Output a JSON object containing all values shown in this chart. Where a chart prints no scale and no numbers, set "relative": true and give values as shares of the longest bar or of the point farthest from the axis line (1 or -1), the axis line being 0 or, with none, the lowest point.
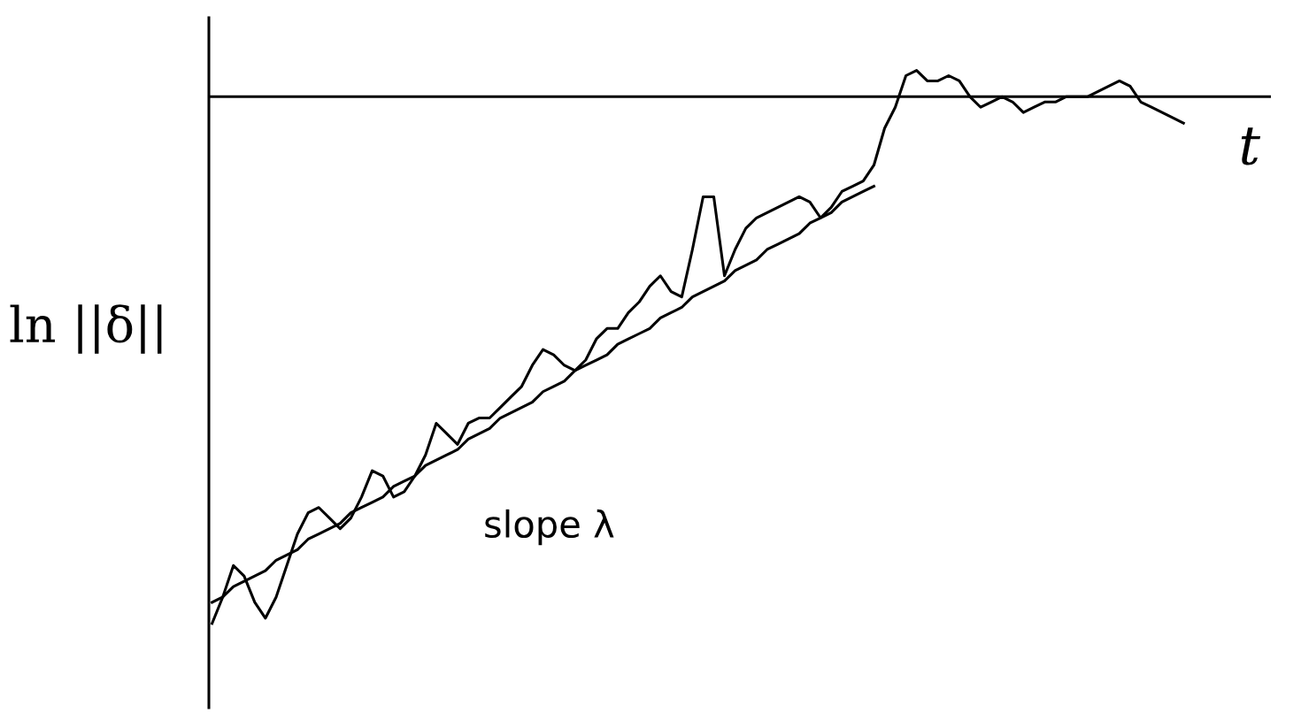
{
  "chart_data": {
    "type": "line",
    "relative": true,
    "xlabel": "t",
    "ylabel": "ln ||δ||",
    "annotations": [
      "slope λ"
    ],
    "categories": [
      null,
      null,
      null,
      null,
      null,
      null,
      null,
      null,
      null,
      null,
      null,
      null,
      null,
      null,
      null,
      null,
      null,
      null,
      null,
      null,
      null,
      null,
      null,
      null,
      null,
      null,
      null,
      null,
      null,
      null,
      null,
      null,
      null,
      null,
      null,
      null,
      null,
      null,
      null,
      null,
      null,
      null,
      null,
      null,
      null,
      null,
      null,
      null,
      null,
      null,
      null,
      null,
      null,
      null,
      null,
      null,
      null,
      null,
      null,
      null,
      null,
      null,
      null,
      null,
      null,
      null,
      null,
      null,
      null,
      null,
      null,
      null,
      null,
      null,
      null,
      null,
      null,
      null,
      null,
      null,
      null,
      null,
      null,
      null,
      null,
      null,
      null,
      null,
      null,
      null,
      null,
      null
    ],
    "series": [
      {
        "color": "#000000",
        "values": [
          -1.0,
          -0.95,
          -0.89,
          -0.91,
          -0.96,
          -0.99,
          -0.95,
          -0.89,
          -0.83,
          -0.79,
          -0.78,
          -0.8,
          -0.82,
          -0.8,
          -0.76,
          -0.71,
          -0.72,
          -0.76,
          -0.75,
          -0.72,
          -0.68,
          -0.62,
          -0.64,
          -0.66,
          -0.62,
          -0.61,
          -0.61,
          -0.59,
          -0.57,
          -0.55,
          -0.51,
          -0.48,
          -0.49,
          -0.51,
          -0.52,
          -0.5,
          -0.46,
          -0.44,
          -0.44,
          -0.41,
          -0.39,
          -0.36,
          -0.34,
          -0.37,
          -0.38,
          -0.29,
          -0.19,
          -0.19,
          -0.34,
          -0.29,
          -0.25,
          -0.23,
          -0.22,
          -0.21,
          -0.2,
          -0.19,
          -0.2,
          -0.23,
          -0.21,
          -0.18,
          -0.17,
          -0.16,
          -0.13,
          -0.06,
          -0.02,
          0.04,
          0.05,
          0.03,
          0.03,
          0.04,
          0.03,
          0.0,
          -0.02,
          -0.01,
          0.0,
          -0.01,
          -0.03,
          -0.02,
          -0.01,
          -0.01,
          0,
          0,
          0,
          0.01,
          0.02,
          0.03,
          0.02,
          -0.01,
          -0.02,
          -0.03,
          -0.04,
          -0.05
        ]
      },
      {
        "color": "#000000",
        "values": [
          -0.96,
          -0.95,
          -0.93,
          -0.92,
          -0.91,
          -0.9,
          -0.88,
          -0.87,
          -0.86,
          -0.84,
          -0.83,
          -0.82,
          -0.81,
          -0.79,
          -0.78,
          -0.77,
          -0.76,
          -0.74,
          -0.73,
          -0.72,
          -0.7,
          -0.69,
          -0.68,
          -0.67,
          -0.65,
          -0.64,
          -0.63,
          -0.61,
          -0.6,
          -0.59,
          -0.58,
          -0.56,
          -0.55,
          -0.54,
          -0.52,
          -0.51,
          -0.5,
          -0.49,
          -0.47,
          -0.46,
          -0.45,
          -0.44,
          -0.42,
          -0.41,
          -0.4,
          -0.38,
          -0.37,
          -0.36,
          -0.35,
          -0.33,
          -0.32,
          -0.31,
          -0.29,
          -0.28,
          -0.27,
          -0.26,
          -0.24,
          -0.23,
          -0.22,
          -0.2,
          -0.19,
          -0.18,
          -0.17,
          null,
          null,
          null,
          null,
          null,
          null,
          null,
          null,
          null,
          null,
          null,
          null,
          null,
          null,
          null,
          null,
          null,
          null,
          null,
          null,
          null,
          null,
          null,
          null,
          null,
          null,
          null,
          null,
          null
        ]
      }
    ]
  }
}
